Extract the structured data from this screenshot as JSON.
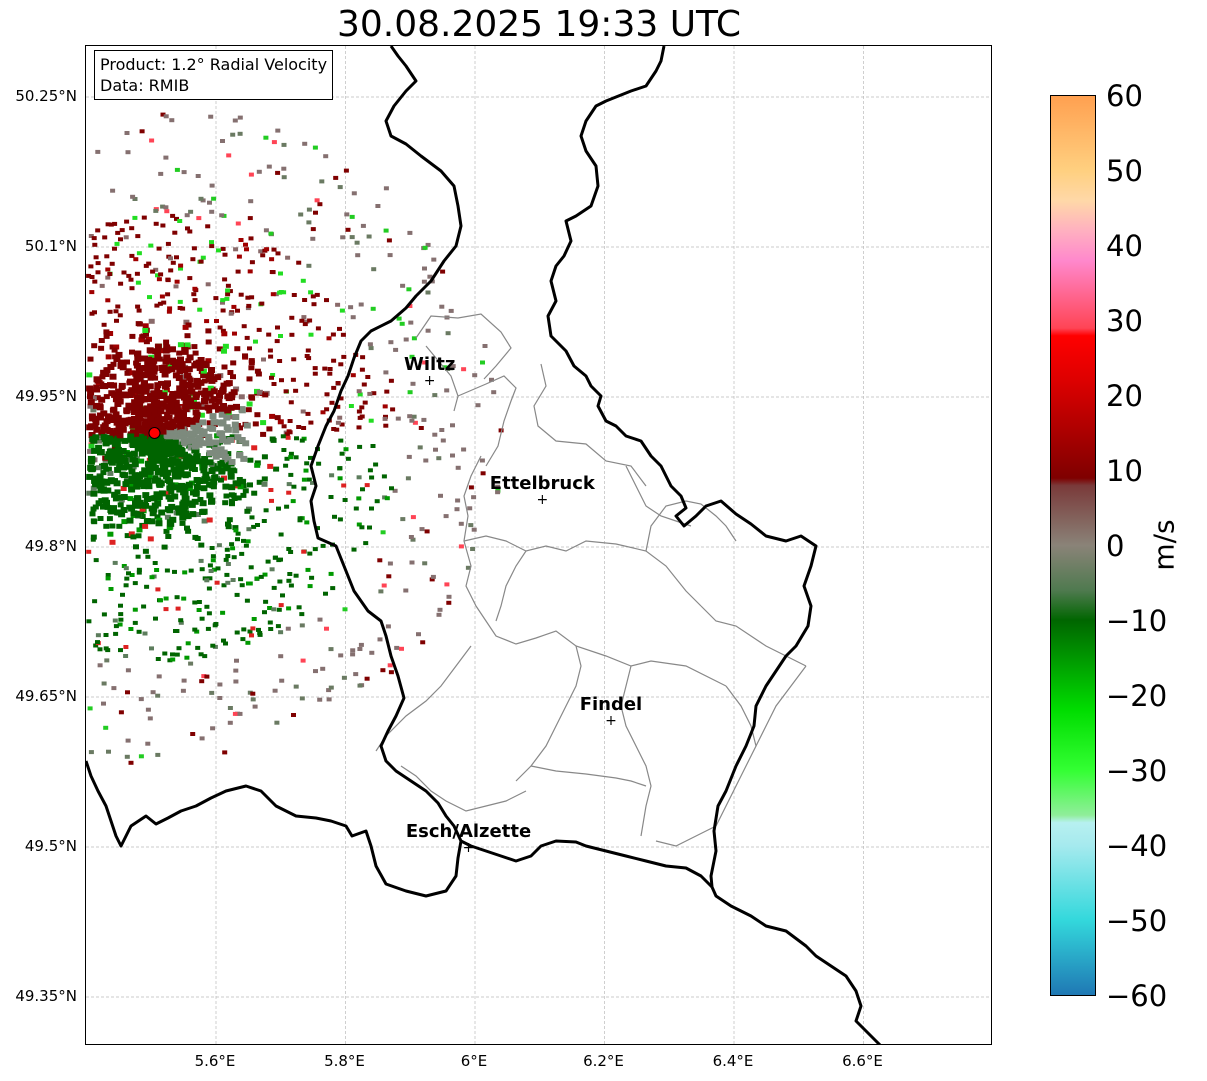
{
  "title": "30.08.2025 19:33 UTC",
  "info": {
    "product": "Product: 1.2° Radial Velocity",
    "data_source": "Data: RMIB"
  },
  "lat_labels": [
    "50.25°N",
    "50.1°N",
    "49.95°N",
    "49.8°N",
    "49.65°N",
    "49.5°N",
    "49.35°N"
  ],
  "lon_labels": [
    "5.6°E",
    "5.8°E",
    "6°E",
    "6.2°E",
    "6.4°E",
    "6.6°E"
  ],
  "cities": [
    {
      "name": "Wiltz",
      "lon": 5.93,
      "lat": 49.967
    },
    {
      "name": "Ettelbruck",
      "lon": 6.104,
      "lat": 49.848
    },
    {
      "name": "Findel",
      "lon": 6.21,
      "lat": 49.627
    },
    {
      "name": "Esch/Alzette",
      "lon": 5.99,
      "lat": 49.5
    }
  ],
  "radar_site": {
    "lon": 5.505,
    "lat": 49.914,
    "color": "#ff0000"
  },
  "colorbar": {
    "unit": "m/s",
    "ticks": [
      "60",
      "50",
      "40",
      "30",
      "20",
      "10",
      "0",
      "−10",
      "−20",
      "−30",
      "−40",
      "−50",
      "−60"
    ],
    "min": -60,
    "max": 60,
    "stops": [
      {
        "v": -60,
        "c": "#1f78b4"
      },
      {
        "v": -50,
        "c": "#33d8dc"
      },
      {
        "v": -40,
        "c": "#a6eaee"
      },
      {
        "v": -37,
        "c": "#b7f0f0"
      },
      {
        "v": -36,
        "c": "#90ee9a"
      },
      {
        "v": -30,
        "c": "#33ff33"
      },
      {
        "v": -22,
        "c": "#00dd00"
      },
      {
        "v": -10,
        "c": "#006600"
      },
      {
        "v": -6,
        "c": "#4f7a4f"
      },
      {
        "v": 0,
        "c": "#8a8378"
      },
      {
        "v": 8,
        "c": "#7a3a3a"
      },
      {
        "v": 9,
        "c": "#7f0000"
      },
      {
        "v": 22,
        "c": "#dd0000"
      },
      {
        "v": 28,
        "c": "#ff0000"
      },
      {
        "v": 29,
        "c": "#ff4455"
      },
      {
        "v": 38,
        "c": "#ff88cc"
      },
      {
        "v": 42,
        "c": "#ffb0c0"
      },
      {
        "v": 46,
        "c": "#ffd8a8"
      },
      {
        "v": 50,
        "c": "#ffd080"
      },
      {
        "v": 60,
        "c": "#ffa050"
      }
    ]
  },
  "colors": {
    "positive_dark": "#7f0000",
    "neutral": "#8a7a7a",
    "negative_dark": "#006400",
    "bright_green": "#22dd22"
  }
}
